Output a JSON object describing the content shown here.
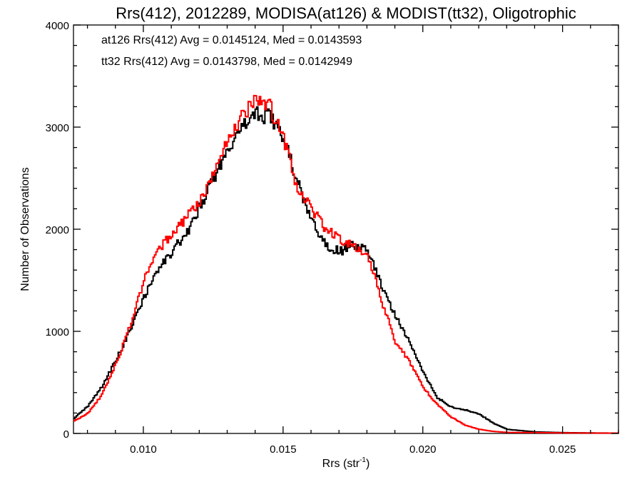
{
  "chart_data": {
    "type": "line",
    "title": "Rrs(412), 2012289, MODISA(at126) & MODIST(tt32), Oligotrophic",
    "xlabel": "Rrs (str",
    "xlabel_sup": "-1",
    "xlabel_end": ")",
    "ylabel": "Number of Observations",
    "xlim": [
      0.0075,
      0.027
    ],
    "ylim": [
      0,
      4000
    ],
    "x_ticks": [
      0.01,
      0.015,
      0.02,
      0.025
    ],
    "x_tick_labels": [
      "0.010",
      "0.015",
      "0.020",
      "0.025"
    ],
    "y_ticks": [
      0,
      1000,
      2000,
      3000,
      4000
    ],
    "y_tick_labels": [
      "0",
      "1000",
      "2000",
      "3000",
      "4000"
    ],
    "grid": false,
    "legend_position": "top-left",
    "series": [
      {
        "legend": "at126 Rrs(412) Avg = 0.0145124, Med = 0.0143593",
        "color": "#000000",
        "x": [
          0.0075,
          0.008,
          0.0085,
          0.009,
          0.0095,
          0.01,
          0.0105,
          0.011,
          0.0115,
          0.012,
          0.0125,
          0.013,
          0.0135,
          0.014,
          0.0145,
          0.015,
          0.0155,
          0.016,
          0.0165,
          0.017,
          0.0175,
          0.018,
          0.0185,
          0.019,
          0.0195,
          0.02,
          0.0205,
          0.021,
          0.0215,
          0.022,
          0.0225,
          0.023,
          0.024,
          0.025,
          0.026,
          0.027
        ],
        "y": [
          150,
          270,
          460,
          720,
          1000,
          1330,
          1600,
          1780,
          1950,
          2220,
          2500,
          2800,
          2980,
          3130,
          3100,
          2900,
          2450,
          2100,
          1850,
          1780,
          1850,
          1800,
          1450,
          1150,
          900,
          600,
          350,
          260,
          230,
          190,
          100,
          40,
          15,
          8,
          5,
          3
        ]
      },
      {
        "legend": "tt32 Rrs(412) Avg = 0.0143798, Med = 0.0142949",
        "color": "#ff0000",
        "x": [
          0.0075,
          0.008,
          0.0085,
          0.009,
          0.0095,
          0.01,
          0.0105,
          0.011,
          0.0115,
          0.012,
          0.0125,
          0.013,
          0.0135,
          0.014,
          0.0145,
          0.015,
          0.0155,
          0.016,
          0.0165,
          0.017,
          0.0175,
          0.018,
          0.0185,
          0.019,
          0.0195,
          0.02,
          0.0205,
          0.021,
          0.0215,
          0.022,
          0.0225,
          0.023,
          0.024,
          0.025,
          0.026,
          0.027
        ],
        "y": [
          120,
          200,
          380,
          680,
          1050,
          1500,
          1800,
          1950,
          2100,
          2280,
          2560,
          2850,
          3100,
          3250,
          3200,
          2900,
          2400,
          2200,
          2000,
          1900,
          1850,
          1750,
          1300,
          900,
          700,
          450,
          280,
          160,
          80,
          40,
          20,
          10,
          8,
          5,
          4,
          3
        ]
      }
    ]
  }
}
